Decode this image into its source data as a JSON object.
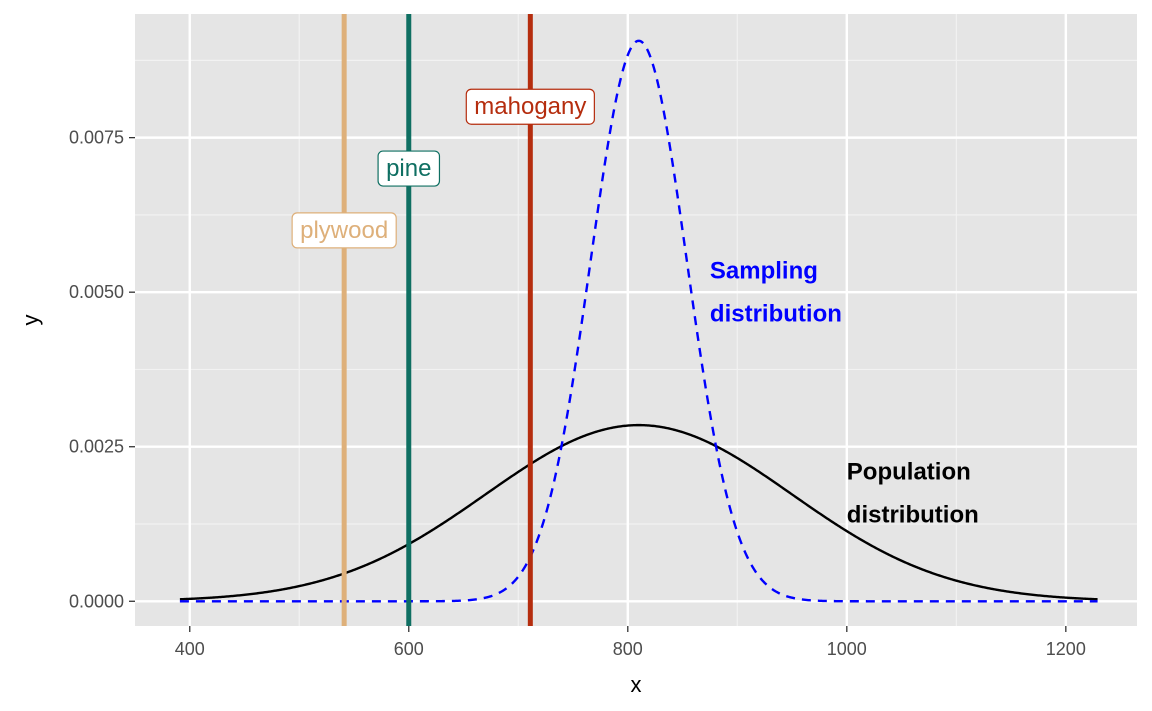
{
  "chart_data": {
    "type": "line",
    "xlabel": "x",
    "ylabel": "y",
    "xlim": [
      350,
      1265
    ],
    "ylim": [
      -0.0004,
      0.0095
    ],
    "x_ticks": [
      400,
      600,
      800,
      1000,
      1200
    ],
    "y_ticks": [
      0,
      0.0025,
      0.005,
      0.0075
    ],
    "x_tick_labels": [
      "400",
      "600",
      "800",
      "1000",
      "1200"
    ],
    "y_tick_labels": [
      "0.0000",
      "0.0025",
      "0.0050",
      "0.0075"
    ],
    "grid": true,
    "curve_range": [
      391,
      1229
    ],
    "series": [
      {
        "name": "Population distribution",
        "distribution": "normal",
        "mean": 810,
        "sd": 140,
        "color": "#000000",
        "line": "solid"
      },
      {
        "name": "Sampling distribution",
        "distribution": "normal",
        "mean": 810,
        "sd": 44,
        "color": "#0000ff",
        "line": "dashed"
      }
    ],
    "vlines": [
      {
        "label": "plywood",
        "x": 541,
        "color": "#deb07a",
        "label_y": 0.006
      },
      {
        "label": "pine",
        "x": 600,
        "color": "#0f6f62",
        "label_y": 0.007
      },
      {
        "label": "mahogany",
        "x": 711,
        "color": "#b52d0e",
        "label_y": 0.008
      }
    ],
    "annotations": [
      {
        "lines": [
          "Sampling",
          "distribution"
        ],
        "x": 875,
        "y": 0.005,
        "color": "#0000ff"
      },
      {
        "lines": [
          "Population",
          "distribution"
        ],
        "x": 1000,
        "y": 0.00175,
        "color": "#000000"
      }
    ]
  }
}
